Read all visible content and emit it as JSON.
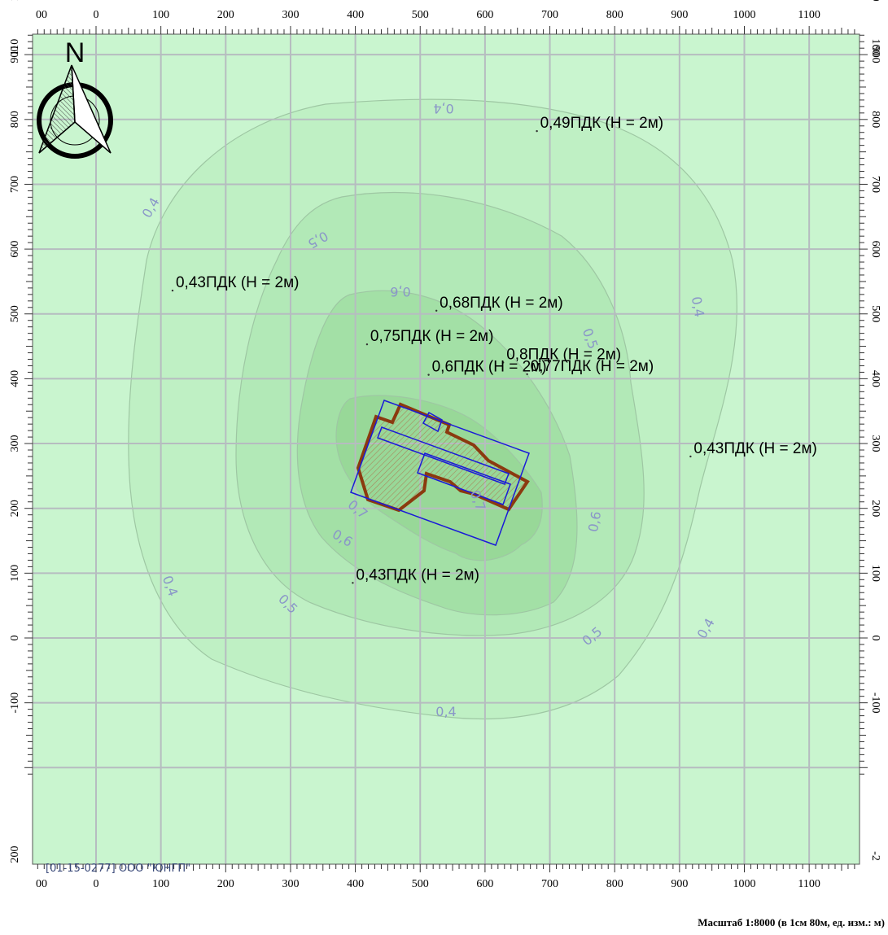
{
  "map": {
    "org_label": "[01-15-0277] ООО \"ЮНГП\"",
    "scale_caption": "Масштаб 1:8000 (в 1см 80м, ед. изм.: м)",
    "north_label": "N",
    "colors": {
      "background": "#c9f5cf",
      "zone_04": "#bff0c4",
      "zone_05": "#b2e9b7",
      "zone_06": "#a3e0a6",
      "zone_07": "#98d898",
      "isoline": "#94bc9b",
      "isoline_label": "#8a96c8",
      "grid": "#b6bcc0",
      "site_outline": "#8b3a0f",
      "site_fill": "#b99a66",
      "source_outline": "#1a1ad8"
    },
    "x_axis": {
      "range": [
        -90,
        1200
      ],
      "ticks": [
        "0",
        "100",
        "200",
        "300",
        "400",
        "500",
        "600",
        "700",
        "800",
        "900",
        "1000",
        "1100"
      ],
      "edge_labels": [
        "00",
        "00"
      ]
    },
    "y_axis": {
      "range": [
        -210,
        1110
      ],
      "ticks_left": [
        "0",
        "100",
        "200",
        "300",
        "400",
        "500",
        "600",
        "700",
        "800",
        "900",
        "1000",
        "-100"
      ],
      "ticks_right": [
        "0",
        "100",
        "200",
        "300",
        "400",
        "500",
        "600",
        "700",
        "800",
        "900",
        "1000",
        "-100"
      ],
      "edge_left_top": "110",
      "edge_left_bottom": "200",
      "edge_right_top": "100",
      "edge_right_bottom": "-2"
    },
    "isolines": [
      {
        "level": "0,4",
        "labels": [
          "0,4",
          "0,4",
          "0,4",
          "0,4",
          "0,4",
          "0,4"
        ]
      },
      {
        "level": "0,5",
        "labels": [
          "0,5",
          "0,5",
          "0,5",
          "0,5"
        ]
      },
      {
        "level": "0,6",
        "labels": [
          "0,6",
          "0,6",
          "0,6"
        ]
      },
      {
        "level": "0,7",
        "labels": [
          "0,7",
          "0,7"
        ]
      }
    ],
    "points": [
      {
        "label": "0,49ПДК (Н = 2м)",
        "x": 680,
        "y": 782
      },
      {
        "label": "0,43ПДК (Н = 2м)",
        "x": 118,
        "y": 536
      },
      {
        "label": "0,68ПДК (Н = 2м)",
        "x": 525,
        "y": 505
      },
      {
        "label": "0,75ПДК (Н = 2м)",
        "x": 418,
        "y": 453
      },
      {
        "label": "0,8ПДК (Н = 2м)",
        "x": 628,
        "y": 425
      },
      {
        "label": "0,6ПДК (Н = 2м)",
        "x": 513,
        "y": 406
      },
      {
        "label": "0,77ПДК (Н = 2м)",
        "x": 665,
        "y": 407
      },
      {
        "label": "0,43ПДК (Н = 2м)",
        "x": 917,
        "y": 280
      },
      {
        "label": "0,43ПДК (Н = 2м)",
        "x": 396,
        "y": 85
      }
    ]
  }
}
